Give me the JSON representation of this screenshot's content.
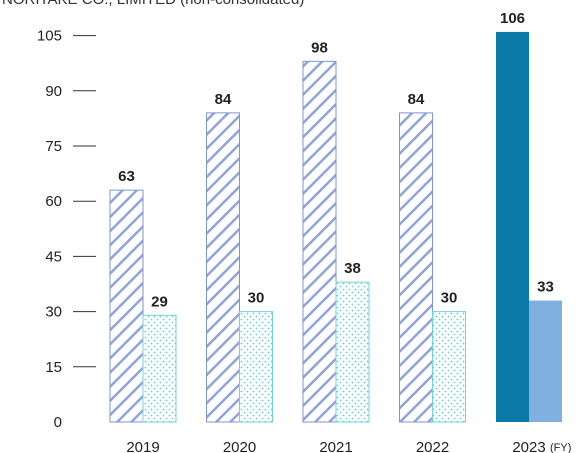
{
  "header_note": "NORITAKE CO., LIMITED (non-consolidated)",
  "colors": {
    "hatch_stroke": "#8fa3dc",
    "hatch_border": "#7f95d6",
    "dots": "#5fd0d8",
    "dots_border": "#6fd3dc",
    "highlight_series1": "#0a7aa8",
    "highlight_series2": "#7fb0e0",
    "axis_text": "#222222"
  },
  "chart_data": {
    "type": "bar",
    "categories": [
      "2019",
      "2020",
      "2021",
      "2022",
      "2023"
    ],
    "x_unit_suffix": "(FY)",
    "series": [
      {
        "values": [
          63,
          84,
          98,
          84,
          106
        ]
      },
      {
        "values": [
          29,
          30,
          38,
          30,
          33
        ]
      }
    ],
    "value_labels": [
      [
        "63",
        "84",
        "98",
        "84",
        "106"
      ],
      [
        "29",
        "30",
        "38",
        "30",
        "33"
      ]
    ],
    "highlight_category": "2023",
    "yticks": [
      0,
      15,
      30,
      45,
      60,
      75,
      90,
      105
    ],
    "ylim": [
      0,
      106
    ],
    "title": "",
    "xlabel": "",
    "ylabel": "",
    "grid": false
  }
}
